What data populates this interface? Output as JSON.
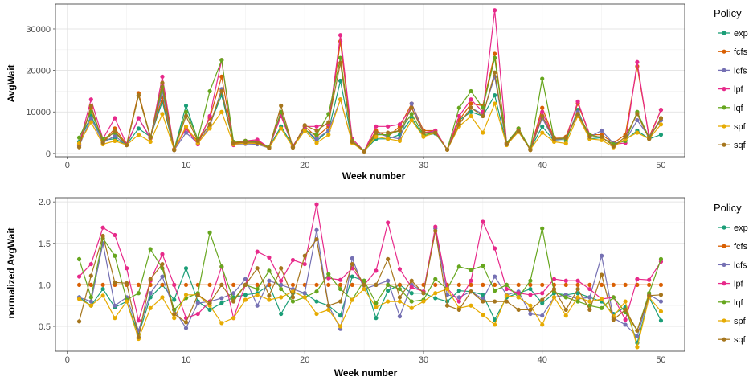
{
  "legend": {
    "title": "Policy",
    "entries": [
      {
        "name": "exp",
        "color": "#1b9e77"
      },
      {
        "name": "fcfs",
        "color": "#d95f02"
      },
      {
        "name": "lcfs",
        "color": "#7570b3"
      },
      {
        "name": "lpf",
        "color": "#e7298a"
      },
      {
        "name": "lqf",
        "color": "#66a61e"
      },
      {
        "name": "spf",
        "color": "#e6ab02"
      },
      {
        "name": "sqf",
        "color": "#a6761d"
      }
    ]
  },
  "chart_data": [
    {
      "type": "line",
      "xlabel": "Week number",
      "ylabel": "AvgWait",
      "xlim": [
        -1,
        52
      ],
      "ylim": [
        -800,
        36000
      ],
      "xticks": [
        0,
        10,
        20,
        30,
        40,
        50
      ],
      "yticks": [
        0,
        10000,
        20000,
        30000
      ],
      "grid": true,
      "legend_position": "right",
      "x": [
        1,
        2,
        3,
        4,
        5,
        6,
        7,
        8,
        9,
        10,
        11,
        12,
        13,
        14,
        15,
        16,
        17,
        18,
        19,
        20,
        21,
        22,
        23,
        24,
        25,
        26,
        27,
        28,
        29,
        30,
        31,
        32,
        33,
        34,
        35,
        36,
        37,
        38,
        39,
        40,
        41,
        42,
        43,
        44,
        45,
        46,
        47,
        48,
        49,
        50
      ],
      "series": [
        {
          "name": "exp",
          "values": [
            2800,
            9000,
            3200,
            3500,
            2100,
            6000,
            4000,
            12500,
            900,
            11500,
            3200,
            7000,
            14000,
            2500,
            2700,
            2900,
            1500,
            6500,
            1800,
            6000,
            3000,
            5500,
            17500,
            2800,
            600,
            3500,
            3500,
            4500,
            8500,
            4200,
            4800,
            900,
            8000,
            10000,
            9000,
            14000,
            2100,
            5200,
            1000,
            6500,
            3000,
            3000,
            10500,
            3500,
            3800,
            2200,
            3200,
            5500,
            3500,
            4500
          ]
        },
        {
          "name": "fcfs",
          "values": [
            2000,
            11000,
            2800,
            6000,
            2200,
            14500,
            4000,
            13500,
            1000,
            6000,
            3000,
            8500,
            18500,
            2500,
            3000,
            3000,
            1400,
            9500,
            1600,
            6500,
            4000,
            6500,
            27000,
            3000,
            500,
            5500,
            4000,
            6500,
            12000,
            5500,
            5500,
            900,
            8000,
            12000,
            11500,
            24000,
            2500,
            6000,
            1000,
            11000,
            3800,
            4000,
            12000,
            4500,
            4500,
            2500,
            4500,
            21000,
            4000,
            10500
          ]
        },
        {
          "name": "lcfs",
          "values": [
            1800,
            8500,
            2600,
            4200,
            2000,
            8500,
            3800,
            15000,
            800,
            5000,
            2400,
            6500,
            15500,
            2200,
            2300,
            2200,
            1300,
            10000,
            1500,
            5800,
            3500,
            5500,
            13000,
            2600,
            500,
            5000,
            4000,
            3500,
            12000,
            5000,
            5200,
            900,
            7000,
            11000,
            9500,
            18500,
            2200,
            5500,
            900,
            8500,
            3200,
            3500,
            10000,
            4000,
            5500,
            2400,
            3000,
            8000,
            4000,
            8000
          ]
        },
        {
          "name": "lpf",
          "values": [
            2200,
            13000,
            3500,
            8500,
            2200,
            8500,
            3600,
            18500,
            1000,
            6000,
            2200,
            9000,
            22500,
            2000,
            3000,
            3300,
            1400,
            9000,
            1700,
            6500,
            6500,
            7000,
            28500,
            3500,
            600,
            6500,
            6500,
            7000,
            11000,
            5000,
            5500,
            900,
            9000,
            13000,
            10000,
            34500,
            2500,
            5500,
            900,
            10000,
            3500,
            3500,
            12500,
            4500,
            3800,
            2200,
            2500,
            22000,
            3600,
            10500
          ]
        },
        {
          "name": "lqf",
          "values": [
            3800,
            10000,
            3500,
            5000,
            2000,
            14000,
            4000,
            16000,
            900,
            10000,
            3500,
            15000,
            22500,
            2800,
            3000,
            2600,
            1500,
            10000,
            1500,
            5500,
            4500,
            9500,
            23000,
            3000,
            600,
            4500,
            4500,
            5500,
            9500,
            4500,
            5000,
            900,
            11000,
            15000,
            11000,
            23000,
            2500,
            6000,
            1000,
            18000,
            3500,
            3500,
            9500,
            4500,
            3800,
            2200,
            3000,
            10000,
            3800,
            8500
          ]
        },
        {
          "name": "spf",
          "values": [
            2400,
            7500,
            2200,
            3000,
            2000,
            4500,
            2800,
            9500,
            900,
            6500,
            2500,
            6000,
            10000,
            2200,
            2500,
            2400,
            1300,
            6000,
            1500,
            5500,
            2500,
            4500,
            13000,
            2500,
            500,
            4000,
            3500,
            3000,
            8000,
            4000,
            5000,
            900,
            6500,
            9000,
            5000,
            12000,
            2000,
            5200,
            900,
            5000,
            2800,
            2400,
            9000,
            3500,
            3200,
            1500,
            3500,
            5000,
            3500,
            7000
          ]
        },
        {
          "name": "sqf",
          "values": [
            1500,
            11500,
            2600,
            5400,
            2000,
            14000,
            3800,
            17000,
            800,
            9000,
            3000,
            7000,
            15000,
            2400,
            2700,
            2600,
            1300,
            11500,
            1400,
            6800,
            5500,
            7500,
            21800,
            2800,
            500,
            5000,
            5000,
            5500,
            11000,
            5000,
            5000,
            900,
            7000,
            11000,
            9000,
            19500,
            2200,
            5500,
            800,
            9000,
            3500,
            3800,
            9500,
            4000,
            4000,
            1700,
            4000,
            9500,
            3500,
            8500
          ]
        }
      ]
    },
    {
      "type": "line",
      "xlabel": "Week number",
      "ylabel": "normalized AvgWait",
      "xlim": [
        -1,
        52
      ],
      "ylim": [
        0.2,
        2.05
      ],
      "xticks": [
        0,
        10,
        20,
        30,
        40,
        50
      ],
      "yticks": [
        0.5,
        1.0,
        1.5,
        2.0
      ],
      "ytick_labels": [
        "0.5",
        "1.0",
        "1.5",
        "2.0"
      ],
      "grid": true,
      "legend_position": "right",
      "x": [
        1,
        2,
        3,
        4,
        5,
        6,
        7,
        8,
        9,
        10,
        11,
        12,
        13,
        14,
        15,
        16,
        17,
        18,
        19,
        20,
        21,
        22,
        23,
        24,
        25,
        26,
        27,
        28,
        29,
        30,
        31,
        32,
        33,
        34,
        35,
        36,
        37,
        38,
        39,
        40,
        41,
        42,
        43,
        44,
        45,
        46,
        47,
        48,
        49,
        50
      ],
      "series": [
        {
          "name": "exp",
          "values": [
            0.85,
            0.75,
            0.95,
            0.73,
            0.8,
            0.4,
            0.85,
            1.0,
            0.82,
            1.2,
            0.8,
            0.7,
            0.78,
            0.85,
            0.88,
            0.9,
            1.0,
            0.65,
            0.9,
            0.9,
            0.8,
            0.75,
            0.63,
            1.1,
            1.05,
            0.6,
            0.93,
            1.0,
            0.9,
            0.9,
            0.84,
            0.8,
            0.93,
            0.92,
            0.88,
            0.58,
            0.85,
            0.9,
            0.95,
            0.78,
            0.9,
            0.88,
            0.9,
            0.85,
            0.8,
            0.65,
            0.73,
            0.3,
            0.85,
            0.57
          ]
        },
        {
          "name": "fcfs",
          "values": [
            1.0,
            1.0,
            1.0,
            1.0,
            1.0,
            1.0,
            1.0,
            1.0,
            1.0,
            1.0,
            1.0,
            1.0,
            1.0,
            1.0,
            1.0,
            1.0,
            1.0,
            1.0,
            1.0,
            1.0,
            1.0,
            1.0,
            1.0,
            1.0,
            1.0,
            1.0,
            1.0,
            1.0,
            1.0,
            1.0,
            1.0,
            1.0,
            1.0,
            1.0,
            1.0,
            1.0,
            1.0,
            1.0,
            1.0,
            1.0,
            1.0,
            1.0,
            1.0,
            1.0,
            1.0,
            1.0,
            1.0,
            1.0,
            1.0,
            1.0
          ]
        },
        {
          "name": "lcfs",
          "values": [
            0.85,
            0.8,
            1.5,
            0.75,
            0.85,
            0.45,
            0.9,
            1.1,
            0.7,
            0.48,
            0.78,
            0.8,
            0.84,
            0.9,
            1.07,
            0.75,
            1.05,
            1.0,
            0.95,
            0.9,
            1.66,
            0.75,
            0.47,
            1.32,
            0.95,
            1.0,
            1.05,
            0.62,
            1.0,
            0.92,
            1.68,
            0.88,
            0.85,
            0.92,
            0.83,
            1.1,
            0.88,
            0.92,
            0.65,
            0.63,
            0.85,
            0.88,
            0.83,
            0.85,
            1.35,
            0.6,
            0.52,
            0.38,
            0.88,
            0.8
          ]
        },
        {
          "name": "lpf",
          "values": [
            1.1,
            1.25,
            1.69,
            1.6,
            1.2,
            0.57,
            1.05,
            1.37,
            1.0,
            0.6,
            0.65,
            0.8,
            1.22,
            0.6,
            1.0,
            1.4,
            1.33,
            1.05,
            1.3,
            1.25,
            1.97,
            1.08,
            1.06,
            1.2,
            1.0,
            1.17,
            1.75,
            1.19,
            0.97,
            0.92,
            1.7,
            0.96,
            0.8,
            1.05,
            1.76,
            1.44,
            0.95,
            0.9,
            0.88,
            0.9,
            1.07,
            1.05,
            1.05,
            0.95,
            0.83,
            0.85,
            0.58,
            1.07,
            1.06,
            1.28
          ]
        },
        {
          "name": "lqf",
          "values": [
            1.31,
            0.85,
            1.56,
            1.35,
            0.82,
            0.9,
            1.43,
            1.2,
            0.7,
            0.84,
            0.9,
            1.63,
            1.22,
            0.82,
            1.0,
            0.95,
            1.17,
            0.95,
            0.8,
            0.85,
            0.92,
            1.13,
            0.95,
            0.82,
            1.05,
            0.78,
            1.0,
            0.95,
            0.8,
            0.82,
            1.07,
            0.95,
            1.22,
            1.18,
            1.23,
            0.93,
            1.0,
            0.85,
            1.05,
            1.68,
            0.92,
            0.85,
            0.8,
            0.75,
            0.72,
            0.85,
            0.67,
            0.45,
            0.9,
            1.31
          ]
        },
        {
          "name": "spf",
          "values": [
            0.83,
            0.75,
            0.87,
            0.6,
            0.8,
            0.35,
            0.72,
            0.85,
            0.6,
            0.88,
            0.88,
            0.75,
            0.54,
            0.6,
            0.82,
            0.88,
            0.82,
            0.85,
            0.92,
            0.85,
            0.65,
            0.7,
            0.5,
            0.82,
            0.95,
            0.73,
            0.8,
            0.8,
            0.72,
            0.8,
            0.9,
            0.95,
            0.72,
            0.75,
            0.64,
            0.52,
            0.87,
            0.85,
            0.75,
            0.52,
            0.85,
            0.63,
            0.85,
            0.8,
            0.83,
            0.62,
            0.8,
            0.25,
            0.85,
            0.68
          ]
        },
        {
          "name": "sqf",
          "values": [
            0.56,
            1.11,
            1.59,
            1.03,
            1.02,
            0.37,
            1.07,
            1.25,
            0.65,
            0.55,
            0.88,
            0.78,
            1.0,
            0.8,
            1.0,
            1.2,
            0.87,
            1.2,
            0.85,
            1.35,
            1.55,
            0.75,
            0.8,
            1.25,
            1.0,
            1.0,
            1.31,
            0.85,
            1.05,
            0.9,
            1.65,
            0.75,
            0.7,
            0.92,
            0.8,
            0.8,
            0.8,
            0.7,
            0.7,
            0.82,
            0.95,
            0.7,
            0.95,
            0.7,
            1.12,
            0.58,
            0.7,
            0.45,
            0.87,
            0.88
          ]
        }
      ]
    }
  ]
}
